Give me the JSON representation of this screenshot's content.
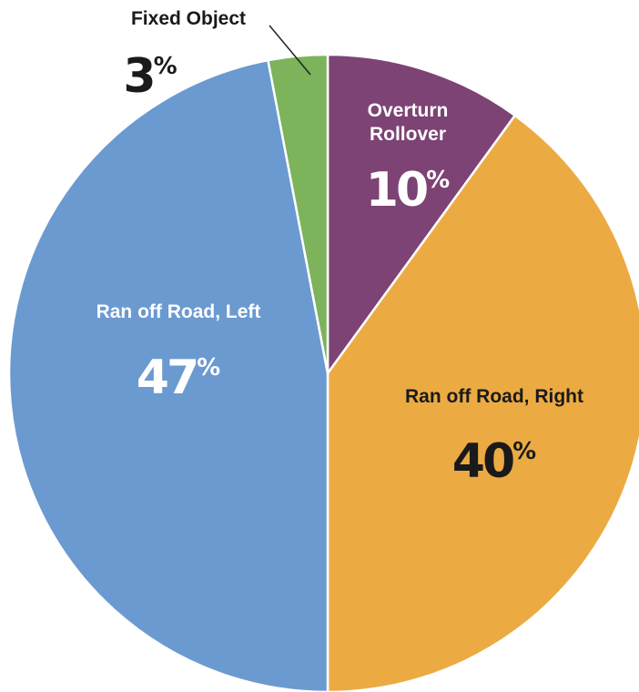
{
  "chart_data": {
    "type": "pie",
    "title": "",
    "start": "top",
    "direction": "clockwise",
    "slices": [
      {
        "label": "Overturn Rollover",
        "label_lines": [
          "Overturn",
          "Rollover"
        ],
        "value": 10,
        "display": "10",
        "unit": "%",
        "color": "#7d4374",
        "text_color": "#ffffff"
      },
      {
        "label": "Ran off Road, Right",
        "label_lines": [
          "Ran off Road, Right"
        ],
        "value": 40,
        "display": "40",
        "unit": "%",
        "color": "#ebab42",
        "text_color": "#1a1a1a"
      },
      {
        "label": "Ran off Road, Left",
        "label_lines": [
          "Ran off Road, Left"
        ],
        "value": 47,
        "display": "47",
        "unit": "%",
        "color": "#6a9ad0",
        "text_color": "#ffffff"
      },
      {
        "label": "Fixed Object",
        "label_lines": [
          "Fixed Object"
        ],
        "value": 3,
        "display": "3",
        "unit": "%",
        "color": "#7cb35b",
        "text_color": "#1a1a1a"
      }
    ]
  }
}
